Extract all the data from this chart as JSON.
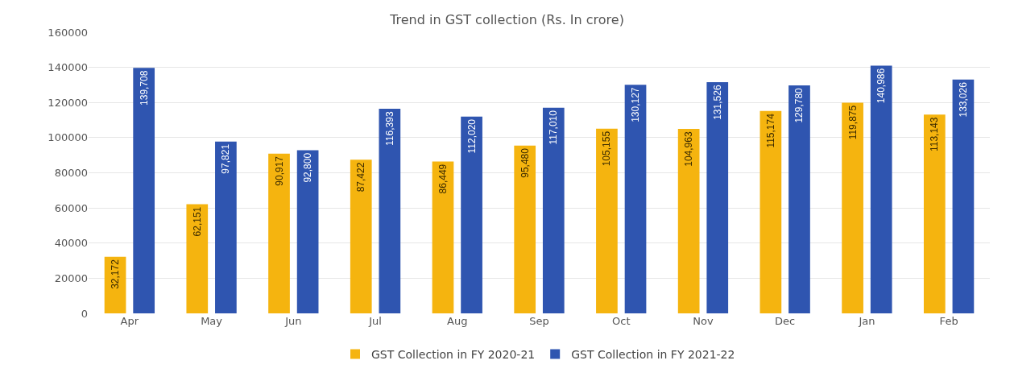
{
  "chart_data": {
    "type": "bar",
    "title": "Trend in GST collection (Rs. In crore)",
    "categories": [
      "Apr",
      "May",
      "Jun",
      "Jul",
      "Aug",
      "Sep",
      "Oct",
      "Nov",
      "Dec",
      "Jan",
      "Feb"
    ],
    "series": [
      {
        "name": "GST Collection in FY 2020-21",
        "color": "#f5b40f",
        "values": [
          32172,
          62151,
          90917,
          87422,
          86449,
          95480,
          105155,
          104963,
          115174,
          119875,
          113143
        ],
        "value_labels": [
          "32,172",
          "62,151",
          "90,917",
          "87,422",
          "86,449",
          "95,480",
          "105,155",
          "104,963",
          "115,174",
          "119,875",
          "113,143"
        ]
      },
      {
        "name": "GST Collection in FY 2021-22",
        "color": "#2f55b0",
        "values": [
          139708,
          97821,
          92800,
          116393,
          112020,
          117010,
          130127,
          131526,
          129780,
          140986,
          133026
        ],
        "value_labels": [
          "139,708",
          "97,821",
          "92,800",
          "116,393",
          "112,020",
          "117,010",
          "130,127",
          "131,526",
          "129,780",
          "140,986",
          "133,026"
        ]
      }
    ],
    "ylim": [
      0,
      160000
    ],
    "yticks": [
      0,
      20000,
      40000,
      60000,
      80000,
      100000,
      120000,
      140000,
      160000
    ],
    "grid": "y",
    "legend": "bottom"
  }
}
